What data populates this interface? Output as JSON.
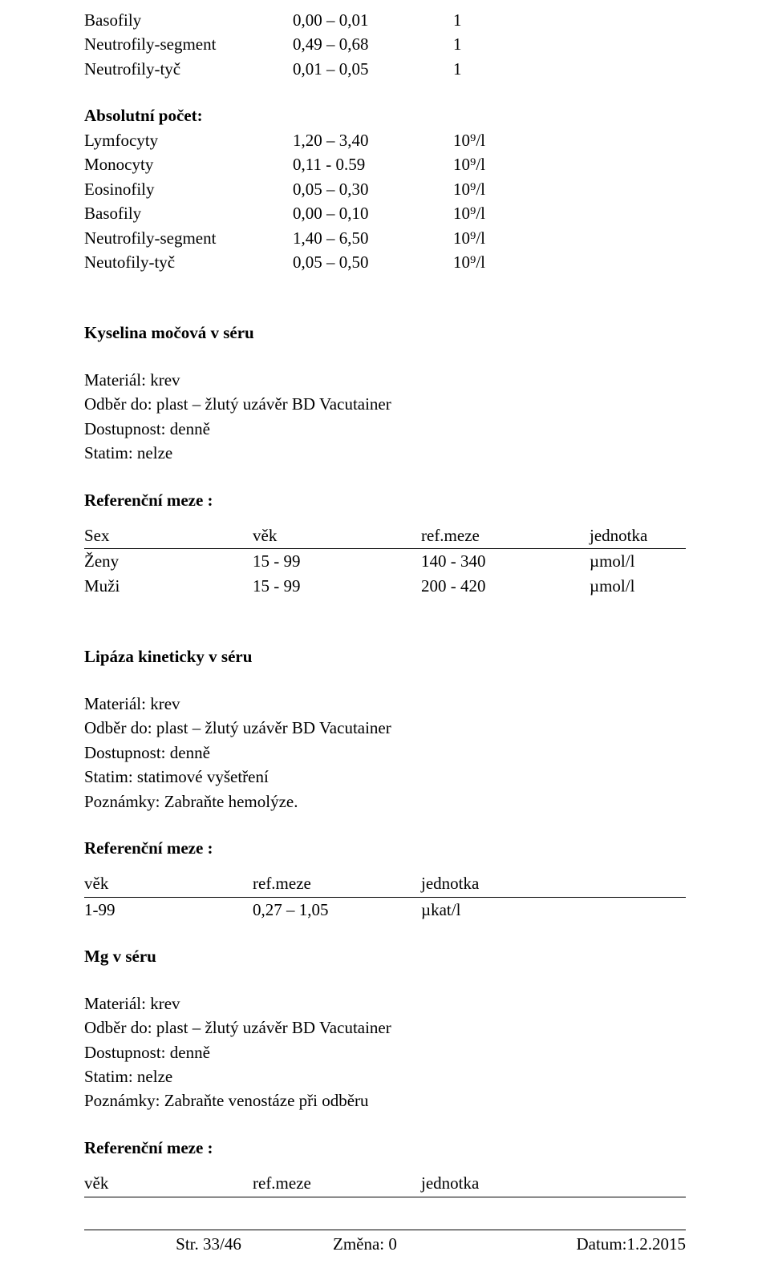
{
  "top_rows": [
    {
      "name": "Basofily",
      "range": "0,00 – 0,01",
      "unit": "1"
    },
    {
      "name": "Neutrofily-segment",
      "range": "0,49 – 0,68",
      "unit": "1"
    },
    {
      "name": "Neutrofily-tyč",
      "range": "0,01 – 0,05",
      "unit": "1"
    }
  ],
  "abs_heading": "Absolutní počet:",
  "abs_rows": [
    {
      "name": "Lymfocyty",
      "range": "1,20 – 3,40",
      "unit": "10⁹/l"
    },
    {
      "name": "Monocyty",
      "range": "0,11 - 0.59",
      "unit": "10⁹/l"
    },
    {
      "name": "Eosinofily",
      "range": "0,05 – 0,30",
      "unit": "10⁹/l"
    },
    {
      "name": "Basofily",
      "range": "0,00 – 0,10",
      "unit": "10⁹/l"
    },
    {
      "name": "Neutrofily-segment",
      "range": "1,40 – 6,50",
      "unit": "10⁹/l"
    },
    {
      "name": "Neutofily-tyč",
      "range": "0,05 – 0,50",
      "unit": "10⁹/l"
    }
  ],
  "section1": {
    "title": "Kyselina močová v séru",
    "lines": [
      "Materiál: krev",
      "Odběr do: plast – žlutý uzávěr BD Vacutainer",
      "Dostupnost: denně",
      "Statim: nelze"
    ],
    "ref_heading": "Referenční meze :",
    "header": {
      "c1": "Sex",
      "c2": "věk",
      "c3": "ref.meze",
      "c4": "jednotka"
    },
    "rows": [
      {
        "c1": "Ženy",
        "c2": "15 - 99",
        "c3": "140 - 340",
        "c4": "µmol/l"
      },
      {
        "c1": "Muži",
        "c2": "15 - 99",
        "c3": "200 - 420",
        "c4": "µmol/l"
      }
    ]
  },
  "section2": {
    "title": "Lipáza kineticky v séru",
    "lines": [
      "Materiál: krev",
      "Odběr do: plast – žlutý uzávěr BD Vacutainer",
      "Dostupnost: denně",
      "Statim: statimové vyšetření",
      "Poznámky: Zabraňte hemolýze."
    ],
    "ref_heading": "Referenční meze :",
    "header": {
      "c1": "věk",
      "c2": "ref.meze",
      "c3": "jednotka"
    },
    "rows": [
      {
        "c1": "1-99",
        "c2": "0,27 – 1,05",
        "c3": "µkat/l"
      }
    ]
  },
  "section3": {
    "title": "Mg v séru",
    "lines": [
      "Materiál: krev",
      "Odběr do: plast – žlutý uzávěr BD Vacutainer",
      "Dostupnost: denně",
      "Statim: nelze",
      "Poznámky: Zabraňte venostáze při odběru"
    ],
    "ref_heading": "Referenční meze :",
    "header": {
      "c1": "věk",
      "c2": "ref.meze",
      "c3": "jednotka"
    }
  },
  "footer": {
    "page": "Str. 33/46",
    "change": "Změna: 0",
    "date": "Datum:1.2.2015"
  }
}
